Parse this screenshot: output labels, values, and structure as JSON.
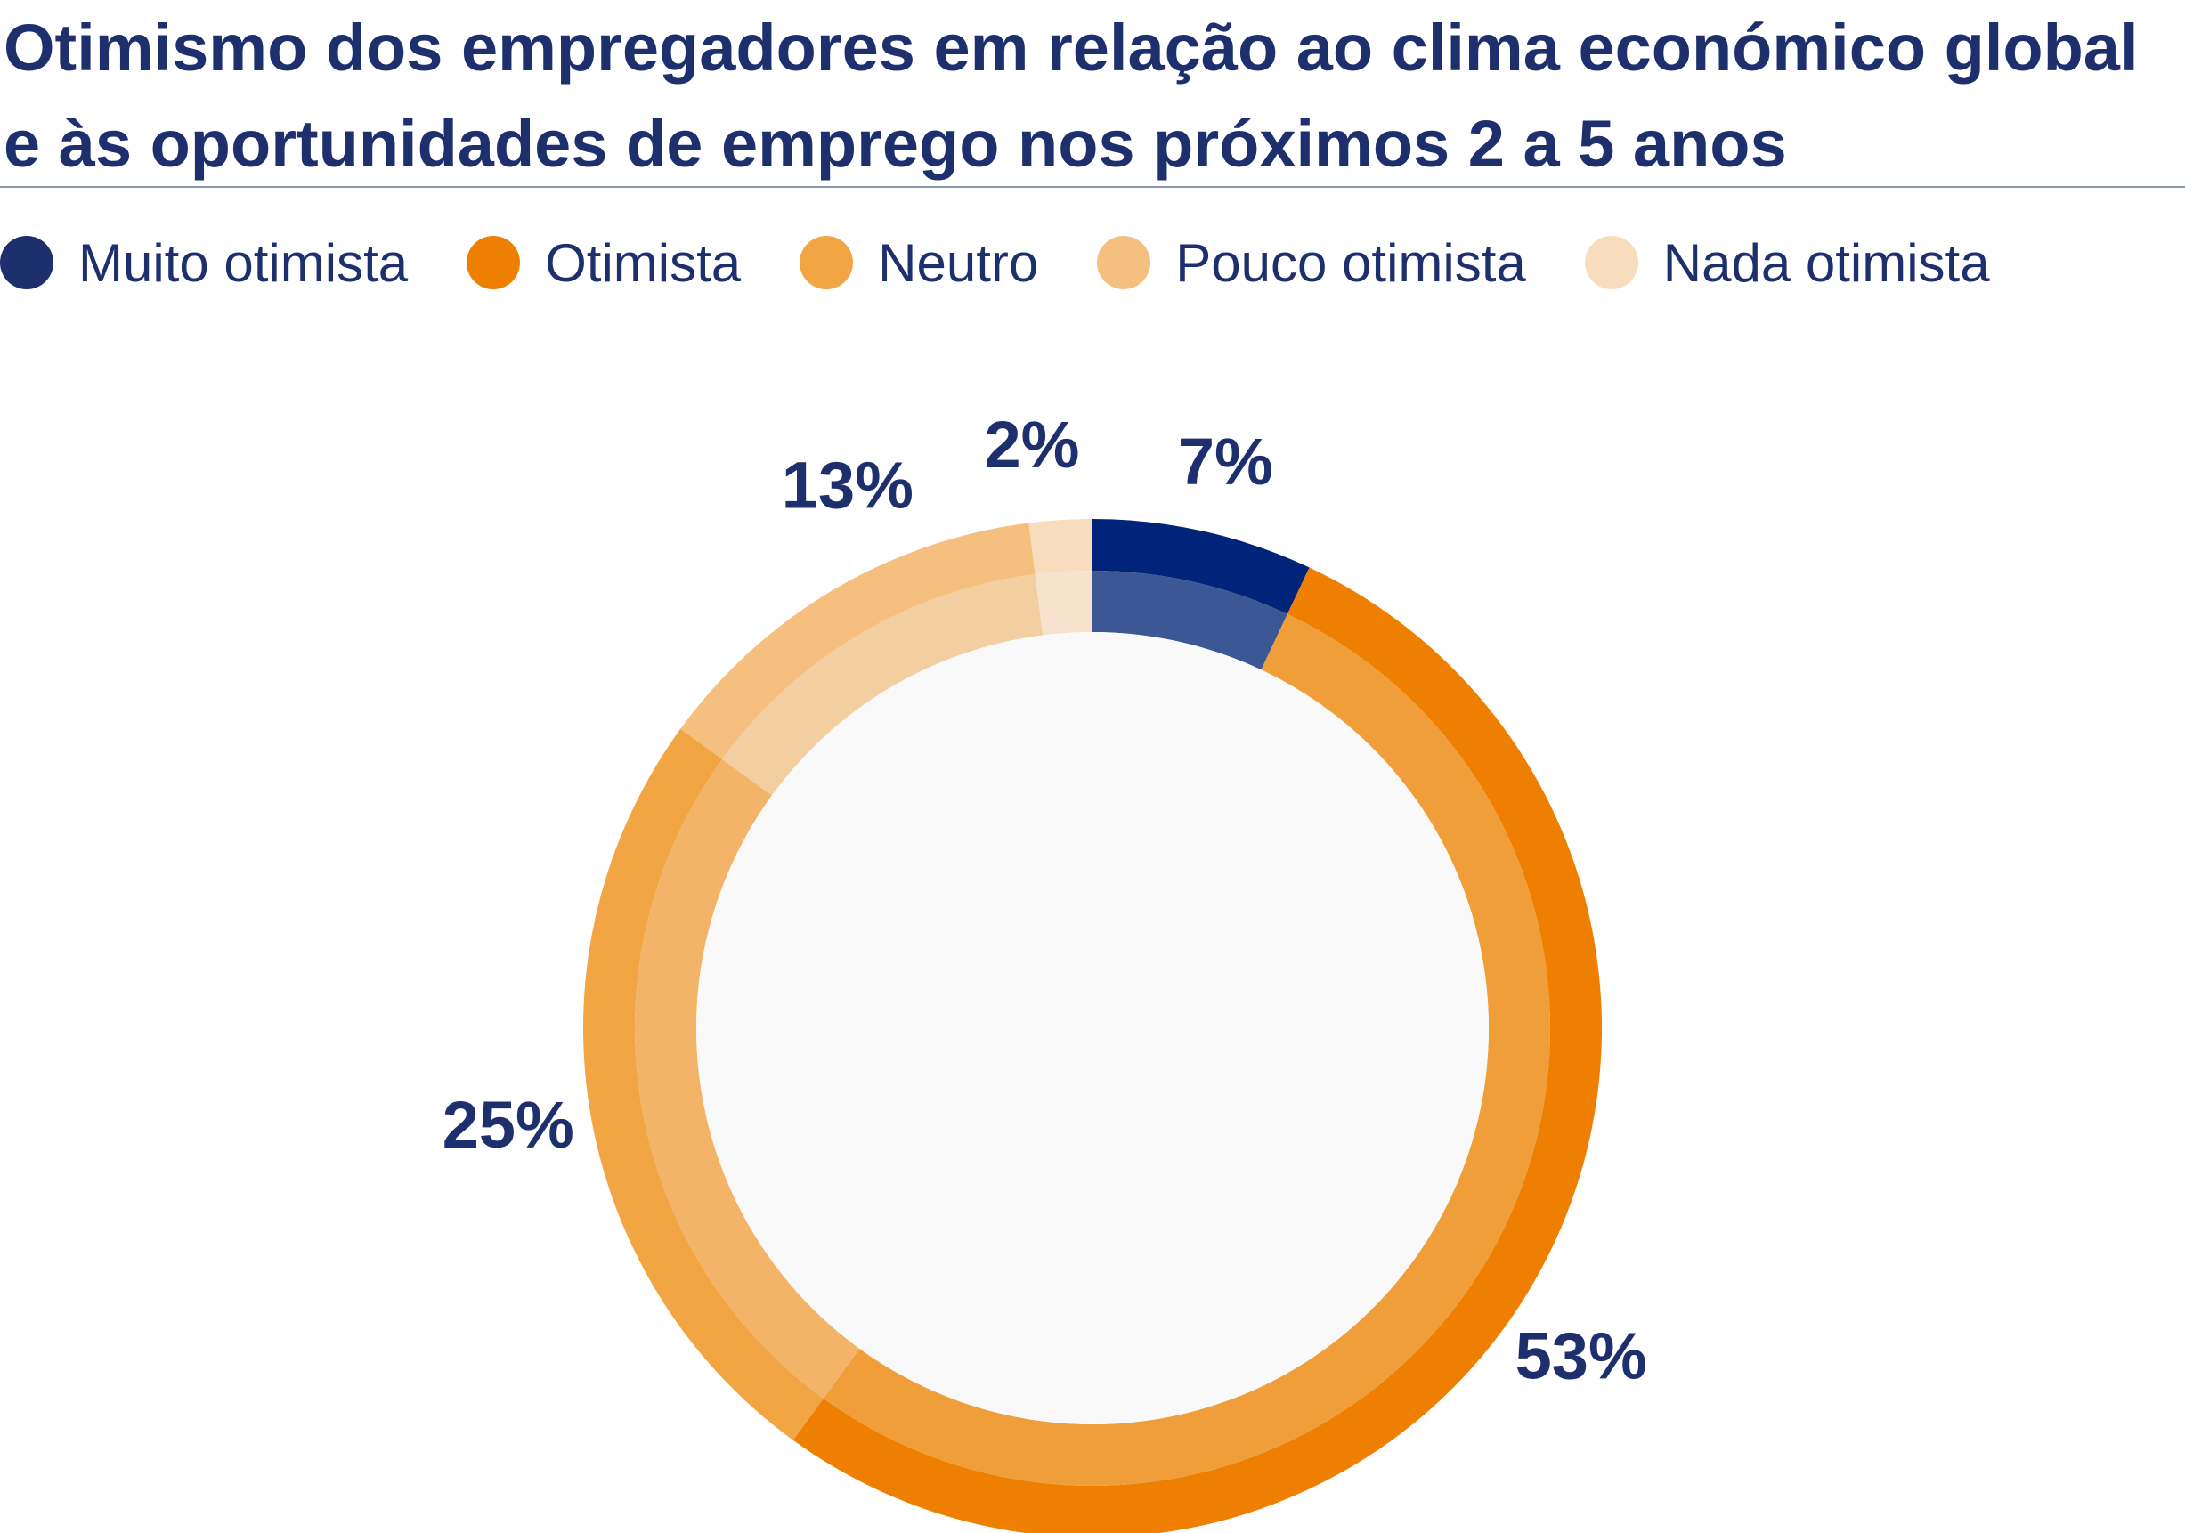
{
  "chart_data": {
    "type": "pie",
    "title": "Otimismo dos empregadores em relação ao clima económico global e às oportunidades de emprego nos próximos 2 a 5 anos",
    "categories": [
      "Muito otimista",
      "Otimista",
      "Neutro",
      "Pouco otimista",
      "Nada otimista"
    ],
    "values": [
      7,
      53,
      25,
      13,
      2
    ],
    "value_labels": [
      "7%",
      "53%",
      "25%",
      "13%",
      "2%"
    ],
    "colors": [
      "#00247a",
      "#ee7f00",
      "#f2a543",
      "#f5c07f",
      "#f8dcbd"
    ],
    "inner_colors": [
      "#3c5894",
      "#f09e3a",
      "#f3b46a",
      "#f3cea1",
      "#f7e3cd"
    ],
    "center_fill": "#f9f9f9",
    "legend_position": "top-left",
    "style": "donut"
  },
  "legend": {
    "items": [
      {
        "label": "Muito otimista",
        "color": "#1e2f6e"
      },
      {
        "label": "Otimista",
        "color": "#ee7f00"
      },
      {
        "label": "Neutro",
        "color": "#f2a543"
      },
      {
        "label": "Pouco otimista",
        "color": "#f5c07f"
      },
      {
        "label": "Nada otimista",
        "color": "#f8dcbd"
      }
    ]
  }
}
